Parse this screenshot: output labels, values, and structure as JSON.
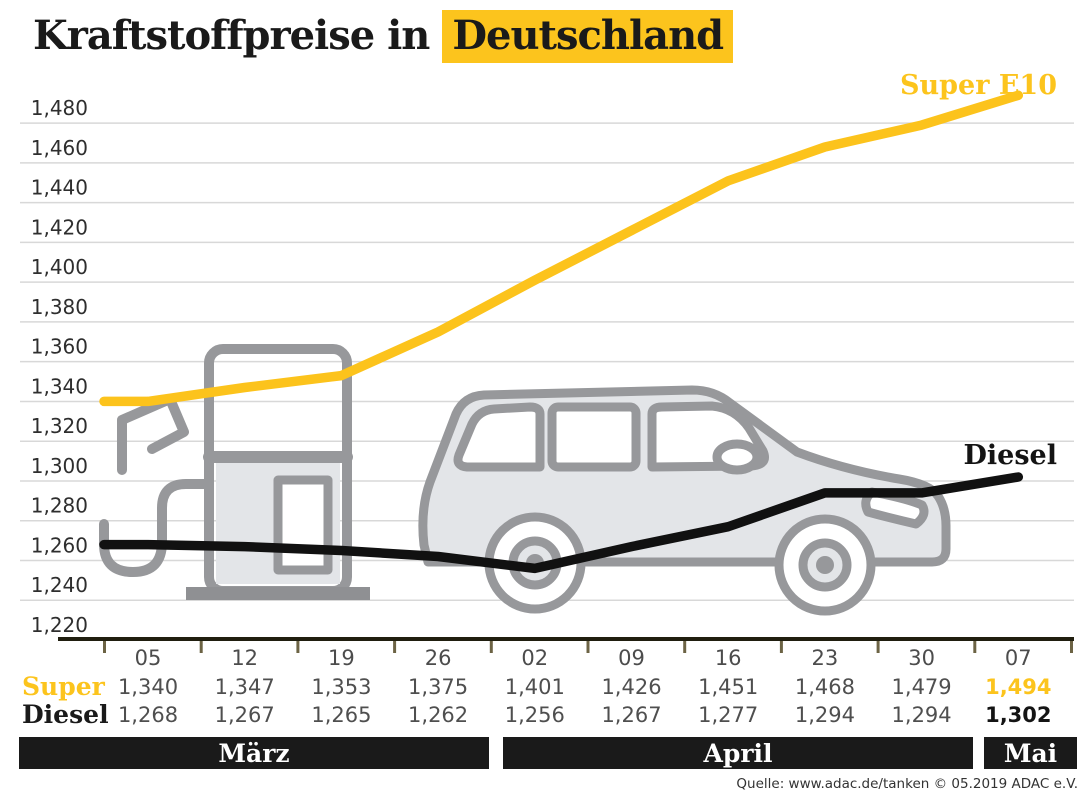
{
  "title": {
    "prefix": "Kraftstoffpreise in",
    "highlight": "Deutschland"
  },
  "labels": {
    "super_line": "Super E10",
    "diesel_line": "Diesel"
  },
  "chart_data": {
    "type": "line",
    "title": "Kraftstoffpreise in Deutschland",
    "x": [
      "05",
      "12",
      "19",
      "26",
      "02",
      "09",
      "16",
      "23",
      "30",
      "07"
    ],
    "series": [
      {
        "name": "Super E10",
        "color": "#FCC31C",
        "values": [
          1.34,
          1.347,
          1.353,
          1.375,
          1.401,
          1.426,
          1.451,
          1.468,
          1.479,
          1.494
        ]
      },
      {
        "name": "Diesel",
        "color": "#111111",
        "values": [
          1.268,
          1.267,
          1.265,
          1.262,
          1.256,
          1.267,
          1.277,
          1.294,
          1.294,
          1.302
        ]
      }
    ],
    "ylim": [
      1.22,
      1.5
    ],
    "yticks": [
      {
        "value": 1.48,
        "label": "1,480"
      },
      {
        "value": 1.46,
        "label": "1,460"
      },
      {
        "value": 1.44,
        "label": "1,440"
      },
      {
        "value": 1.42,
        "label": "1,420"
      },
      {
        "value": 1.4,
        "label": "1,400"
      },
      {
        "value": 1.38,
        "label": "1,380"
      },
      {
        "value": 1.36,
        "label": "1,360"
      },
      {
        "value": 1.34,
        "label": "1,340"
      },
      {
        "value": 1.32,
        "label": "1,320"
      },
      {
        "value": 1.3,
        "label": "1,300"
      },
      {
        "value": 1.28,
        "label": "1,280"
      },
      {
        "value": 1.26,
        "label": "1,260"
      },
      {
        "value": 1.24,
        "label": "1,240"
      },
      {
        "value": 1.22,
        "label": "1,220"
      }
    ],
    "grid": true,
    "legend_position": "inline-right"
  },
  "table": {
    "dates": [
      "05",
      "12",
      "19",
      "26",
      "02",
      "09",
      "16",
      "23",
      "30",
      "07"
    ],
    "rows": [
      {
        "label": "Super",
        "values": [
          "1,340",
          "1,347",
          "1,353",
          "1,375",
          "1,401",
          "1,426",
          "1,451",
          "1,468",
          "1,479",
          "1,494"
        ]
      },
      {
        "label": "Diesel",
        "values": [
          "1,268",
          "1,267",
          "1,265",
          "1,262",
          "1,256",
          "1,267",
          "1,277",
          "1,294",
          "1,294",
          "1,302"
        ]
      }
    ]
  },
  "months": [
    {
      "label": "März",
      "columns": 4
    },
    {
      "label": "April",
      "columns": 5
    },
    {
      "label": "Mai",
      "columns": 1
    }
  ],
  "source": "Quelle: www.adac.de/tanken   © 05.2019  ADAC e.V.",
  "colors": {
    "accent_yellow": "#FCC41D",
    "line_black": "#111111",
    "grid": "#D8D8D8",
    "axis": "#201E0F",
    "tick": "#6C6344",
    "month_band_bg": "#1A1A1A",
    "graphic_outline": "#97989B",
    "graphic_fill": "#E3E5E8"
  }
}
